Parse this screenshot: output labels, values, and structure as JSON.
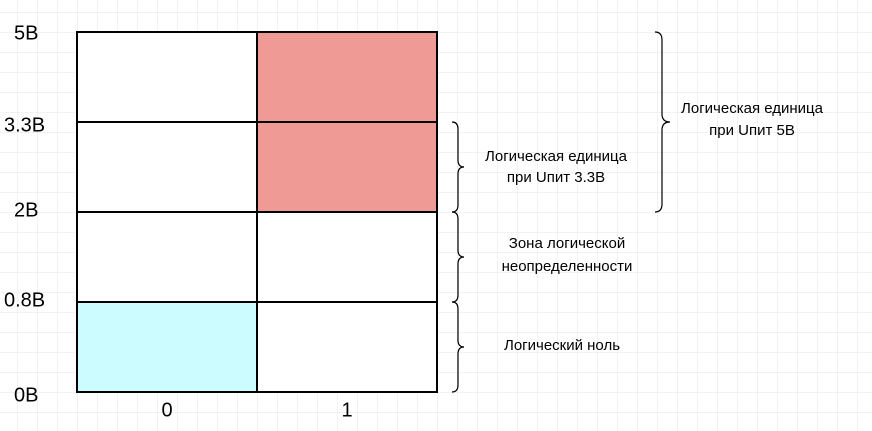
{
  "levels": [
    "5В",
    "3.3В",
    "2В",
    "0.8В",
    "0В"
  ],
  "columns": [
    "0",
    "1"
  ],
  "zones": [
    {
      "lines": [
        "Логическая единица",
        "при Uпит 5В"
      ]
    },
    {
      "lines": [
        "Логическая единица",
        "при Uпит 3.3В"
      ]
    },
    {
      "lines": [
        "Зона логической",
        "неопределенности"
      ]
    },
    {
      "lines": [
        "Логический ноль"
      ]
    }
  ]
}
